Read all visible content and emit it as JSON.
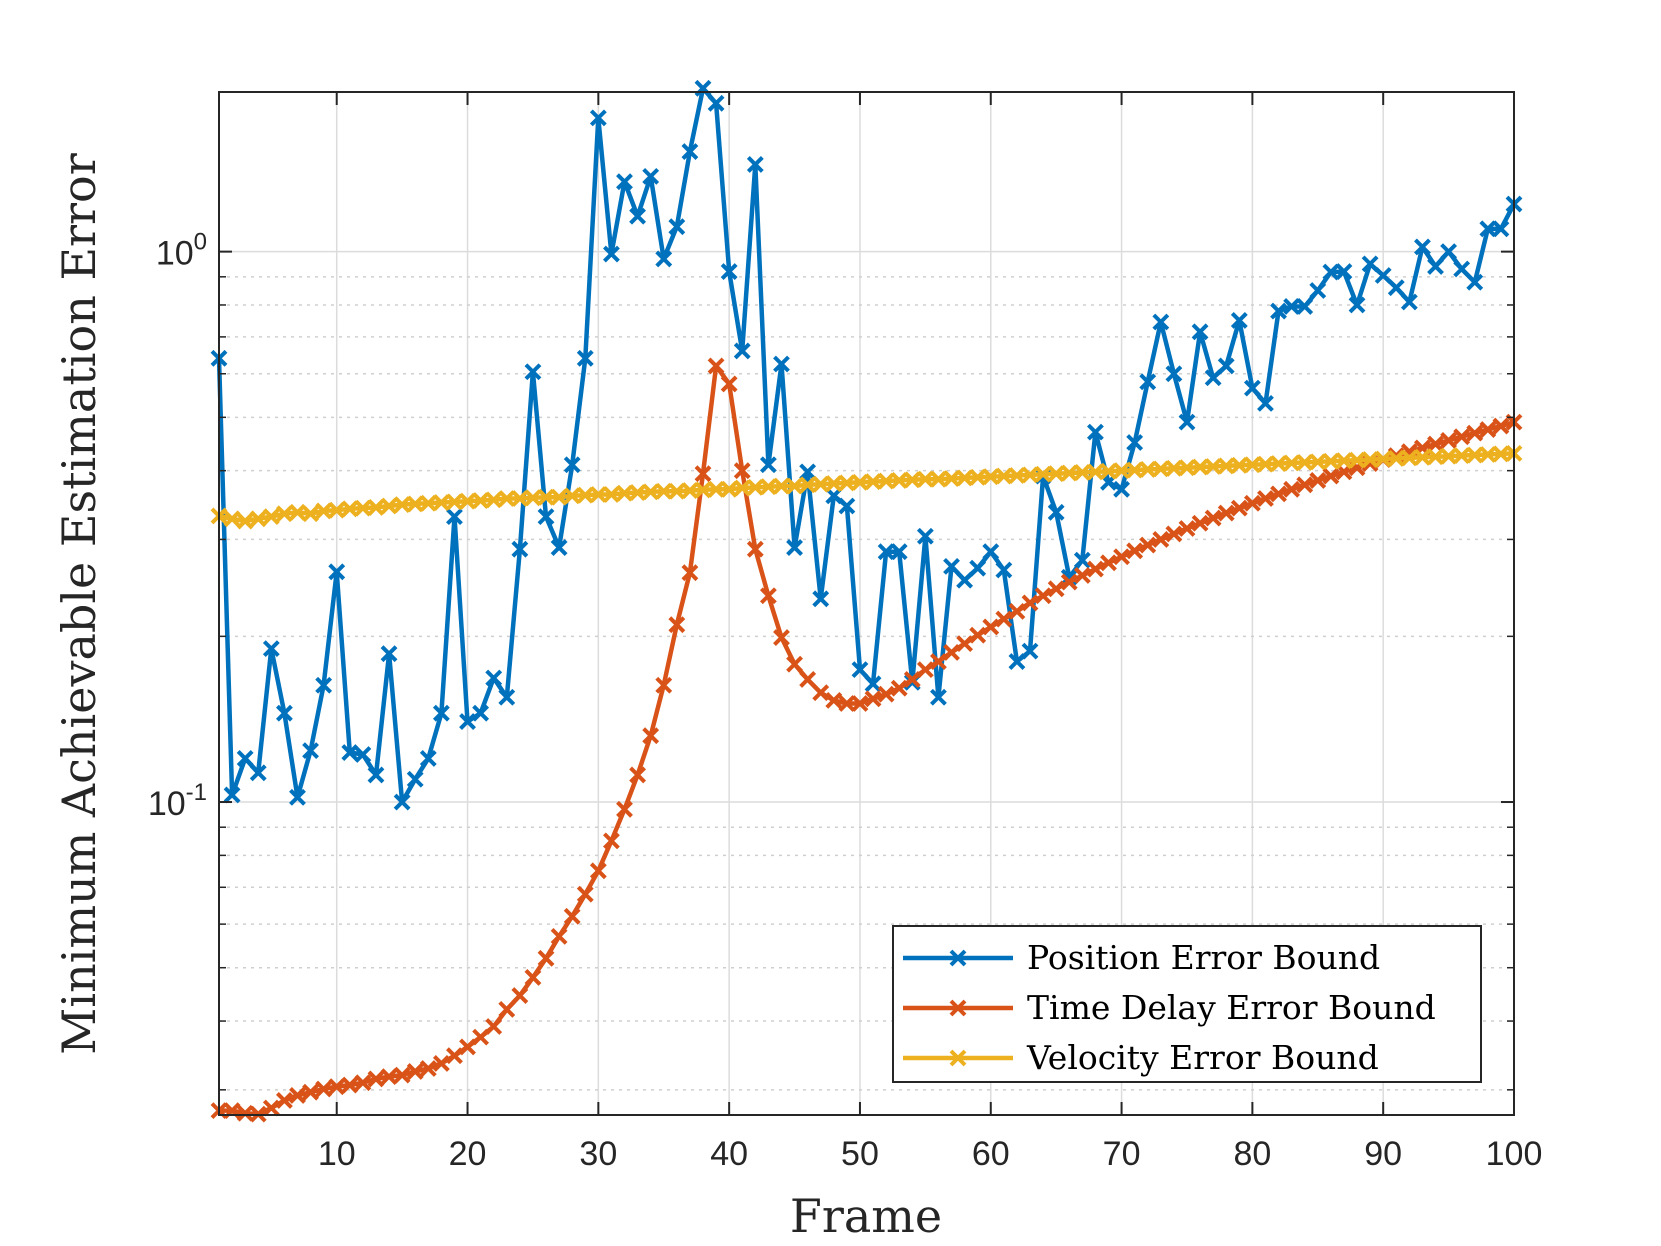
{
  "chart_data": {
    "type": "line",
    "title": "",
    "xlabel": "Frame",
    "ylabel": "Minimum Achievable Estimation Error",
    "xlim": [
      1,
      100
    ],
    "ylim": [
      0.027,
      1.95
    ],
    "yscale": "log",
    "grid": true,
    "legend_position": "bottom-right",
    "x_ticks": [
      10,
      20,
      30,
      40,
      50,
      60,
      70,
      80,
      90,
      100
    ],
    "x_tick_labels": [
      "10",
      "20",
      "30",
      "40",
      "50",
      "60",
      "70",
      "80",
      "90",
      "100"
    ],
    "y_ticks": [
      {
        "value": 1.0,
        "base": "10",
        "exp": "0"
      },
      {
        "value": 0.1,
        "base": "10",
        "exp": "-1"
      }
    ],
    "marker": "x",
    "series": [
      {
        "name": "Position Error Bound",
        "color": "#0072BD",
        "values": [
          0.64,
          0.103,
          0.12,
          0.113,
          0.19,
          0.145,
          0.102,
          0.124,
          0.163,
          0.262,
          0.123,
          0.122,
          0.112,
          0.186,
          0.1,
          0.11,
          0.12,
          0.145,
          0.33,
          0.14,
          0.145,
          0.168,
          0.155,
          0.288,
          0.605,
          0.33,
          0.29,
          0.41,
          0.64,
          1.75,
          0.99,
          1.34,
          1.16,
          1.37,
          0.97,
          1.11,
          1.52,
          1.98,
          1.86,
          0.92,
          0.66,
          1.44,
          0.41,
          0.625,
          0.29,
          0.398,
          0.234,
          0.36,
          0.345,
          0.174,
          0.164,
          0.285,
          0.285,
          0.165,
          0.304,
          0.155,
          0.268,
          0.253,
          0.266,
          0.285,
          0.264,
          0.18,
          0.188,
          0.391,
          0.336,
          0.256,
          0.275,
          0.47,
          0.381,
          0.37,
          0.45,
          0.58,
          0.745,
          0.6,
          0.49,
          0.715,
          0.59,
          0.62,
          0.75,
          0.565,
          0.53,
          0.78,
          0.795,
          0.795,
          0.85,
          0.918,
          0.92,
          0.8,
          0.95,
          0.905,
          0.86,
          0.81,
          1.02,
          0.94,
          1.0,
          0.93,
          0.88,
          1.1,
          1.1,
          1.22
        ]
      },
      {
        "name": "Time Delay Error Bound",
        "color": "#D95319",
        "values": [
          0.0275,
          0.0275,
          0.0272,
          0.0271,
          0.0278,
          0.0287,
          0.0293,
          0.0297,
          0.0301,
          0.0304,
          0.0306,
          0.0309,
          0.0314,
          0.0317,
          0.0319,
          0.0324,
          0.0328,
          0.0335,
          0.0346,
          0.0359,
          0.0374,
          0.0391,
          0.042,
          0.0445,
          0.048,
          0.052,
          0.057,
          0.062,
          0.068,
          0.075,
          0.085,
          0.097,
          0.112,
          0.132,
          0.163,
          0.21,
          0.261,
          0.395,
          0.62,
          0.575,
          0.4,
          0.288,
          0.237,
          0.199,
          0.178,
          0.167,
          0.158,
          0.153,
          0.151,
          0.151,
          0.154,
          0.157,
          0.161,
          0.167,
          0.174,
          0.18,
          0.187,
          0.194,
          0.201,
          0.208,
          0.215,
          0.222,
          0.23,
          0.237,
          0.244,
          0.251,
          0.258,
          0.265,
          0.272,
          0.279,
          0.286,
          0.293,
          0.3,
          0.307,
          0.314,
          0.321,
          0.328,
          0.335,
          0.342,
          0.349,
          0.356,
          0.363,
          0.37,
          0.377,
          0.384,
          0.391,
          0.398,
          0.405,
          0.412,
          0.419,
          0.426,
          0.433,
          0.44,
          0.447,
          0.454,
          0.461,
          0.468,
          0.475,
          0.482,
          0.49
        ]
      },
      {
        "name": "Velocity Error Bound",
        "color": "#EDB120",
        "values": [
          0.331,
          0.327,
          0.324,
          0.327,
          0.33,
          0.334,
          0.336,
          0.334,
          0.338,
          0.339,
          0.341,
          0.342,
          0.343,
          0.345,
          0.347,
          0.348,
          0.349,
          0.35,
          0.351,
          0.352,
          0.353,
          0.354,
          0.356,
          0.356,
          0.357,
          0.358,
          0.358,
          0.36,
          0.361,
          0.362,
          0.362,
          0.364,
          0.365,
          0.366,
          0.367,
          0.367,
          0.368,
          0.369,
          0.37,
          0.37,
          0.372,
          0.373,
          0.374,
          0.375,
          0.375,
          0.377,
          0.378,
          0.379,
          0.38,
          0.381,
          0.382,
          0.383,
          0.384,
          0.385,
          0.386,
          0.386,
          0.387,
          0.388,
          0.389,
          0.39,
          0.391,
          0.392,
          0.393,
          0.394,
          0.395,
          0.396,
          0.397,
          0.398,
          0.399,
          0.4,
          0.401,
          0.402,
          0.403,
          0.404,
          0.405,
          0.406,
          0.407,
          0.408,
          0.409,
          0.41,
          0.411,
          0.412,
          0.413,
          0.414,
          0.415,
          0.416,
          0.417,
          0.418,
          0.419,
          0.42,
          0.421,
          0.422,
          0.423,
          0.424,
          0.425,
          0.426,
          0.427,
          0.428,
          0.429,
          0.43
        ]
      }
    ]
  }
}
